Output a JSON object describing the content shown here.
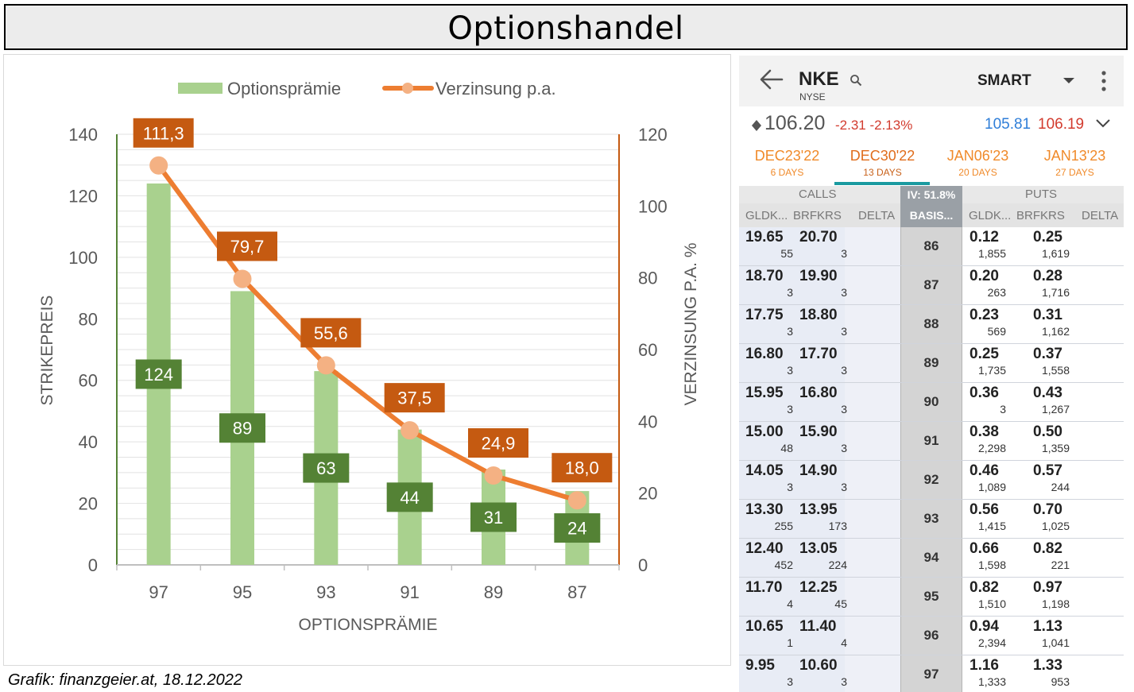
{
  "title": "Optionshandel",
  "credit": "Grafik: finanzgeier.at, 18.12.2022",
  "chart_data": {
    "type": "bar",
    "categories": [
      "97",
      "95",
      "93",
      "91",
      "89",
      "87"
    ],
    "xlabel": "OPTIONSPRÄMIE",
    "ylabel": "STRIKEPREIS",
    "y2label": "VERZINSUNG P.A. %",
    "ylim": [
      0,
      140
    ],
    "y2lim": [
      0,
      120
    ],
    "yticks": [
      "0",
      "20",
      "40",
      "60",
      "80",
      "100",
      "120",
      "140"
    ],
    "y2ticks": [
      "0",
      "20",
      "40",
      "60",
      "80",
      "100",
      "120"
    ],
    "grid": true,
    "legend_position": "top",
    "series": [
      {
        "name": "Optionsprämie",
        "type": "bar",
        "axis": "left",
        "color": "#a9d18e",
        "values": [
          124,
          89,
          63,
          44,
          31,
          24
        ],
        "labels": [
          "124",
          "89",
          "63",
          "44",
          "31",
          "24"
        ]
      },
      {
        "name": "Verzinsung p.a.",
        "type": "line",
        "axis": "right",
        "color": "#ed7d31",
        "values": [
          111.3,
          79.7,
          55.6,
          37.5,
          24.9,
          18.0
        ],
        "labels": [
          "111,3",
          "79,7",
          "55,6",
          "37,5",
          "24,9",
          "18,0"
        ]
      }
    ],
    "colors": {
      "bar_label_bg": "#548235",
      "line_label_bg": "#c55a11",
      "marker": "#f4b183",
      "left_axis": "#548235",
      "right_axis": "#c55a11",
      "grid": "#e2e2e2"
    }
  },
  "phone": {
    "symbol": "NKE",
    "exchange": "NYSE",
    "route": "SMART",
    "last_price": "106.20",
    "change": "-2.31 -2.13%",
    "bid": "105.81",
    "ask": "106.19",
    "icons": [
      "back-arrow-icon",
      "search-icon",
      "caret-down-icon",
      "more-vert-icon",
      "chevron-down-icon",
      "diamond-icon"
    ],
    "expiries": [
      {
        "date": "DEC23'22",
        "days": "6 DAYS"
      },
      {
        "date": "DEC30'22",
        "days": "13 DAYS",
        "active": true
      },
      {
        "date": "JAN06'23",
        "days": "20 DAYS"
      },
      {
        "date": "JAN13'23",
        "days": "27 DAYS"
      }
    ],
    "calls_label": "CALLS",
    "puts_label": "PUTS",
    "iv_label": "IV: 51.8%",
    "basis_label": "BASIS...",
    "col_headers": {
      "bid": "GLDK...",
      "ask": "BRFKRS",
      "delta": "DELTA"
    },
    "rows": [
      {
        "strike": "86",
        "call_bid": "19.65",
        "call_ask": "20.70",
        "call_bid_size": "55",
        "call_ask_size": "3",
        "put_bid": "0.12",
        "put_ask": "0.25",
        "put_bid_size": "1,855",
        "put_ask_size": "1,619"
      },
      {
        "strike": "87",
        "call_bid": "18.70",
        "call_ask": "19.90",
        "call_bid_size": "3",
        "call_ask_size": "3",
        "put_bid": "0.20",
        "put_ask": "0.28",
        "put_bid_size": "263",
        "put_ask_size": "1,716"
      },
      {
        "strike": "88",
        "call_bid": "17.75",
        "call_ask": "18.80",
        "call_bid_size": "3",
        "call_ask_size": "3",
        "put_bid": "0.23",
        "put_ask": "0.31",
        "put_bid_size": "569",
        "put_ask_size": "1,162"
      },
      {
        "strike": "89",
        "call_bid": "16.80",
        "call_ask": "17.70",
        "call_bid_size": "3",
        "call_ask_size": "3",
        "put_bid": "0.25",
        "put_ask": "0.37",
        "put_bid_size": "1,735",
        "put_ask_size": "1,558"
      },
      {
        "strike": "90",
        "call_bid": "15.95",
        "call_ask": "16.80",
        "call_bid_size": "3",
        "call_ask_size": "3",
        "put_bid": "0.36",
        "put_ask": "0.43",
        "put_bid_size": "3",
        "put_ask_size": "1,267"
      },
      {
        "strike": "91",
        "call_bid": "15.00",
        "call_ask": "15.90",
        "call_bid_size": "48",
        "call_ask_size": "3",
        "put_bid": "0.38",
        "put_ask": "0.50",
        "put_bid_size": "2,298",
        "put_ask_size": "1,359"
      },
      {
        "strike": "92",
        "call_bid": "14.05",
        "call_ask": "14.90",
        "call_bid_size": "3",
        "call_ask_size": "3",
        "put_bid": "0.46",
        "put_ask": "0.57",
        "put_bid_size": "1,089",
        "put_ask_size": "244"
      },
      {
        "strike": "93",
        "call_bid": "13.30",
        "call_ask": "13.95",
        "call_bid_size": "255",
        "call_ask_size": "173",
        "put_bid": "0.56",
        "put_ask": "0.70",
        "put_bid_size": "1,415",
        "put_ask_size": "1,025"
      },
      {
        "strike": "94",
        "call_bid": "12.40",
        "call_ask": "13.05",
        "call_bid_size": "452",
        "call_ask_size": "224",
        "put_bid": "0.66",
        "put_ask": "0.82",
        "put_bid_size": "1,598",
        "put_ask_size": "221"
      },
      {
        "strike": "95",
        "call_bid": "11.70",
        "call_ask": "12.25",
        "call_bid_size": "4",
        "call_ask_size": "45",
        "put_bid": "0.82",
        "put_ask": "0.97",
        "put_bid_size": "1,510",
        "put_ask_size": "1,198"
      },
      {
        "strike": "96",
        "call_bid": "10.65",
        "call_ask": "11.40",
        "call_bid_size": "1",
        "call_ask_size": "4",
        "put_bid": "0.94",
        "put_ask": "1.13",
        "put_bid_size": "2,394",
        "put_ask_size": "1,041"
      },
      {
        "strike": "97",
        "call_bid": "9.95",
        "call_ask": "10.60",
        "call_bid_size": "3",
        "call_ask_size": "3",
        "put_bid": "1.16",
        "put_ask": "1.33",
        "put_bid_size": "1,333",
        "put_ask_size": "953"
      }
    ]
  }
}
